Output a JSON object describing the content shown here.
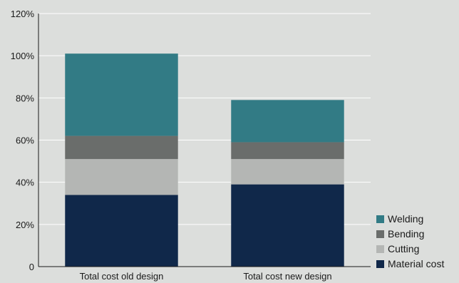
{
  "chart_data": {
    "type": "bar",
    "stacked": true,
    "categories": [
      "Total cost old design",
      "Total cost new design"
    ],
    "series": [
      {
        "name": "Material cost",
        "color": "#10284a",
        "values": [
          34,
          39
        ]
      },
      {
        "name": "Cutting",
        "color": "#b4b6b4",
        "values": [
          17,
          12
        ]
      },
      {
        "name": "Bending",
        "color": "#6a6d6b",
        "values": [
          11,
          8
        ]
      },
      {
        "name": "Welding",
        "color": "#327b85",
        "values": [
          39,
          20
        ]
      }
    ],
    "yticks": [
      "0",
      "20%",
      "40%",
      "60%",
      "80%",
      "100%",
      "120%"
    ],
    "ylim": [
      0,
      120
    ],
    "ystep": 20,
    "grid": true,
    "legend_position": "bottom-right",
    "legend_order": [
      "Welding",
      "Bending",
      "Cutting",
      "Material cost"
    ],
    "colors": {
      "plot_background": "#dcdedc",
      "gridline": "#ffffff",
      "axis": "#1a1a1a"
    }
  }
}
